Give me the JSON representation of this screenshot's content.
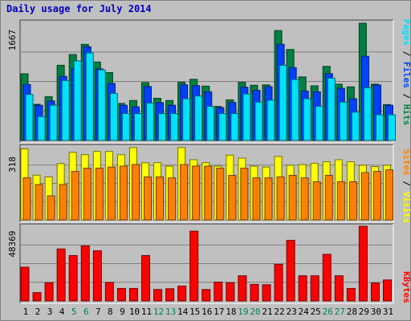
{
  "title": "Daily usage for July 2014",
  "colors": {
    "background": "#c0c0c0",
    "panel_background": "#c0c0c0",
    "gridline": "#808080",
    "hits": "#008040",
    "files": "#0040ff",
    "pages": "#00e0ff",
    "visits": "#ffff00",
    "sites": "#ff8000",
    "kbytes": "#ff0000",
    "weekday_label": "#000000",
    "weekend_label": "#00805c",
    "title_color": "#0000c0"
  },
  "right_labels": {
    "top": [
      {
        "text": "Pages",
        "color": "#00e0ff"
      },
      {
        "text": " / ",
        "color": "#000000"
      },
      {
        "text": "Files",
        "color": "#0040ff"
      },
      {
        "text": " / ",
        "color": "#000000"
      },
      {
        "text": "Hits",
        "color": "#008040"
      }
    ],
    "middle": [
      {
        "text": "Sites",
        "color": "#ff8000"
      },
      {
        "text": " / ",
        "color": "#000000"
      },
      {
        "text": "Visits",
        "color": "#ffff00"
      }
    ],
    "bottom": [
      {
        "text": "KBytes",
        "color": "#ff0000"
      }
    ]
  },
  "chart_data": [
    {
      "type": "bar",
      "title": "Daily usage for July 2014",
      "panel": "top",
      "y_max_label": "1667",
      "ylim": [
        0,
        1667
      ],
      "categories": [
        "1",
        "2",
        "3",
        "4",
        "5",
        "6",
        "7",
        "8",
        "9",
        "10",
        "11",
        "12",
        "13",
        "14",
        "15",
        "16",
        "17",
        "18",
        "19",
        "20",
        "21",
        "22",
        "23",
        "24",
        "25",
        "26",
        "27",
        "28",
        "29",
        "30",
        "31"
      ],
      "weekend_days": [
        5,
        6,
        12,
        13,
        19,
        20,
        26,
        27
      ],
      "series": [
        {
          "name": "Hits",
          "values": [
            941,
            510,
            617,
            1062,
            1213,
            1357,
            1108,
            958,
            522,
            564,
            817,
            595,
            564,
            821,
            863,
            767,
            480,
            573,
            821,
            780,
            785,
            1553,
            1285,
            897,
            771,
            1046,
            795,
            757,
            1656,
            795,
            506
          ]
        },
        {
          "name": "Files",
          "values": [
            789,
            497,
            557,
            905,
            1017,
            1323,
            1011,
            805,
            497,
            474,
            761,
            533,
            497,
            785,
            773,
            688,
            463,
            536,
            752,
            709,
            760,
            1358,
            1030,
            698,
            687,
            944,
            736,
            589,
            1189,
            783,
            497
          ]
        },
        {
          "name": "Pages",
          "values": [
            650,
            337,
            497,
            845,
            1124,
            1236,
            996,
            665,
            380,
            380,
            528,
            380,
            380,
            589,
            627,
            480,
            380,
            380,
            655,
            541,
            567,
            1062,
            860,
            589,
            482,
            880,
            540,
            400,
            745,
            362,
            362
          ]
        }
      ]
    },
    {
      "type": "bar",
      "panel": "middle",
      "y_max_label": "318",
      "ylim": [
        0,
        318
      ],
      "categories": [
        "1",
        "2",
        "3",
        "4",
        "5",
        "6",
        "7",
        "8",
        "9",
        "10",
        "11",
        "12",
        "13",
        "14",
        "15",
        "16",
        "17",
        "18",
        "19",
        "20",
        "21",
        "22",
        "23",
        "24",
        "25",
        "26",
        "27",
        "28",
        "29",
        "30",
        "31"
      ],
      "series": [
        {
          "name": "Visits",
          "values": [
            309,
            195,
            187,
            245,
            294,
            284,
            298,
            298,
            284,
            315,
            249,
            249,
            234,
            315,
            262,
            249,
            234,
            282,
            269,
            234,
            230,
            276,
            238,
            241,
            246,
            253,
            262,
            253,
            238,
            232,
            238
          ]
        },
        {
          "name": "Sites",
          "values": [
            183,
            154,
            105,
            154,
            211,
            225,
            225,
            230,
            234,
            241,
            187,
            187,
            183,
            241,
            234,
            234,
            225,
            194,
            225,
            183,
            183,
            187,
            194,
            183,
            166,
            194,
            166,
            166,
            206,
            211,
            218
          ]
        }
      ]
    },
    {
      "type": "bar",
      "panel": "bottom",
      "y_max_label": "48369",
      "ylim": [
        0,
        48369
      ],
      "categories": [
        "1",
        "2",
        "3",
        "4",
        "5",
        "6",
        "7",
        "8",
        "9",
        "10",
        "11",
        "12",
        "13",
        "14",
        "15",
        "16",
        "17",
        "18",
        "19",
        "20",
        "21",
        "22",
        "23",
        "24",
        "25",
        "26",
        "27",
        "28",
        "29",
        "30",
        "31"
      ],
      "series": [
        {
          "name": "KBytes",
          "values": [
            21850,
            5400,
            11800,
            33700,
            29400,
            35700,
            32500,
            12000,
            8100,
            8100,
            29400,
            7400,
            7900,
            9600,
            45200,
            7400,
            12200,
            11800,
            16300,
            10700,
            10500,
            23700,
            39300,
            16300,
            16300,
            30200,
            16300,
            8100,
            48369,
            11600,
            13600
          ]
        }
      ]
    }
  ]
}
